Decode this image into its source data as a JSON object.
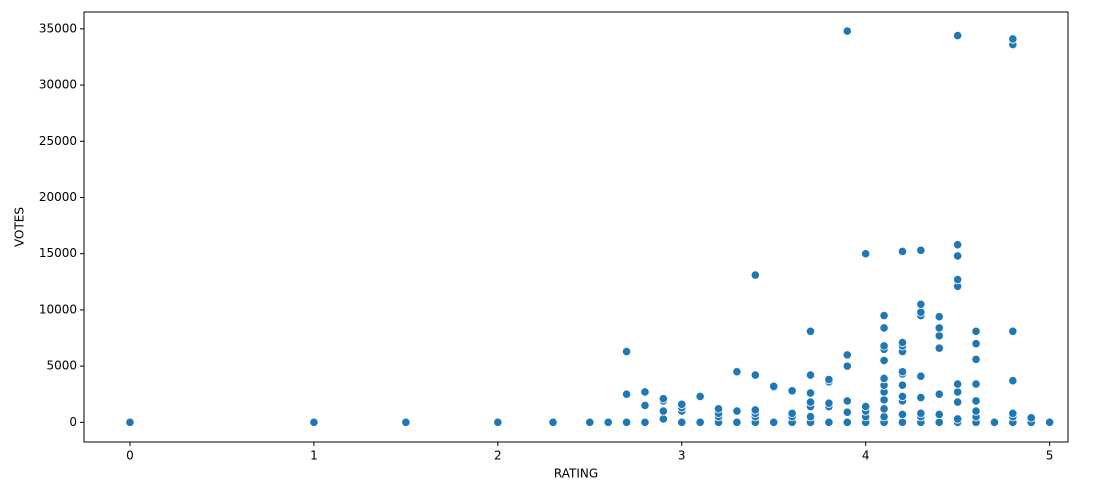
{
  "chart_data": {
    "type": "scatter",
    "x_label": "RATING",
    "y_label": "VOTES",
    "color": "#1f77b4",
    "grid": false,
    "xlim": [
      -0.25,
      5.1
    ],
    "ylim": [
      -1750,
      36500
    ],
    "xticks": [
      0,
      1,
      2,
      3,
      4,
      5
    ],
    "yticks": [
      0,
      5000,
      10000,
      15000,
      20000,
      25000,
      30000,
      35000
    ],
    "x": [
      0,
      1,
      1.5,
      2,
      2.3,
      2.5,
      2.6,
      2.7,
      2.7,
      2.7,
      2.8,
      2.8,
      2.8,
      2.9,
      2.9,
      2.9,
      2.9,
      3.0,
      3.0,
      3.0,
      3.0,
      3.1,
      3.1,
      3.2,
      3.2,
      3.2,
      3.2,
      3.3,
      3.3,
      3.3,
      3.4,
      3.4,
      3.4,
      3.4,
      3.4,
      3.4,
      3.5,
      3.5,
      3.5,
      3.6,
      3.6,
      3.6,
      3.6,
      3.7,
      3.7,
      3.7,
      3.7,
      3.7,
      3.7,
      3.7,
      3.8,
      3.8,
      3.8,
      3.8,
      3.8,
      3.9,
      3.9,
      3.9,
      3.9,
      3.9,
      3.9,
      4.0,
      4.0,
      4.0,
      4.0,
      4.0,
      4.1,
      4.1,
      4.1,
      4.1,
      4.1,
      4.1,
      4.1,
      4.1,
      4.1,
      4.1,
      4.1,
      4.1,
      4.2,
      4.2,
      4.2,
      4.2,
      4.2,
      4.2,
      4.2,
      4.2,
      4.2,
      4.2,
      4.2,
      4.3,
      4.3,
      4.3,
      4.3,
      4.3,
      4.3,
      4.3,
      4.3,
      4.3,
      4.4,
      4.4,
      4.4,
      4.4,
      4.4,
      4.4,
      4.4,
      4.5,
      4.5,
      4.5,
      4.5,
      4.5,
      4.5,
      4.5,
      4.5,
      4.5,
      4.5,
      4.6,
      4.6,
      4.6,
      4.6,
      4.6,
      4.6,
      4.6,
      4.6,
      4.7,
      4.8,
      4.8,
      4.8,
      4.8,
      4.8,
      4.8,
      4.8,
      4.9,
      4.9,
      5.0
    ],
    "values": [
      0,
      0,
      0,
      0,
      0,
      0,
      0,
      0,
      2500,
      6300,
      0,
      1500,
      2700,
      300,
      1000,
      1900,
      2100,
      0,
      1000,
      1300,
      1600,
      0,
      2300,
      0,
      500,
      800,
      1200,
      0,
      1000,
      4500,
      0,
      500,
      800,
      1100,
      4200,
      13100,
      0,
      3100,
      3200,
      0,
      500,
      800,
      2800,
      0,
      500,
      1400,
      1800,
      2600,
      4200,
      8100,
      0,
      1400,
      1700,
      3600,
      3800,
      0,
      900,
      1900,
      5000,
      6000,
      34800,
      0,
      500,
      1000,
      1400,
      15000,
      0,
      500,
      1200,
      2000,
      2700,
      3300,
      3900,
      5500,
      6500,
      6800,
      8400,
      9500,
      0,
      700,
      1900,
      2300,
      3300,
      4300,
      4500,
      6300,
      6800,
      7100,
      15200,
      0,
      500,
      800,
      2200,
      4100,
      9500,
      9800,
      10500,
      15300,
      0,
      700,
      2500,
      6600,
      7700,
      8400,
      9400,
      0,
      300,
      1800,
      2700,
      3400,
      12100,
      12700,
      14800,
      15800,
      34400,
      0,
      500,
      1000,
      1900,
      3400,
      5600,
      7000,
      8100,
      0,
      0,
      500,
      800,
      3700,
      8100,
      33600,
      34100,
      0,
      400,
      0
    ]
  }
}
